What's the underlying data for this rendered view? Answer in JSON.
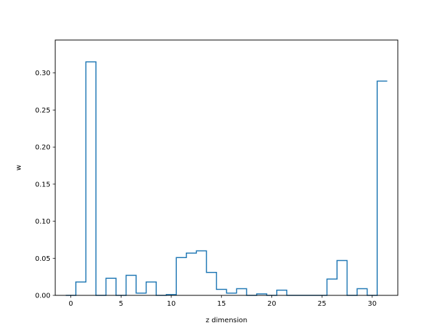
{
  "chart_data": {
    "type": "step",
    "title": "",
    "xlabel": "z dimension",
    "ylabel": "w",
    "xlim": [
      -1.55,
      32.55
    ],
    "ylim": [
      0,
      0.3444
    ],
    "xticks": [
      0,
      5,
      10,
      15,
      20,
      25,
      30
    ],
    "xtick_labels": [
      "0",
      "5",
      "10",
      "15",
      "20",
      "25",
      "30"
    ],
    "yticks": [
      0.0,
      0.05,
      0.1,
      0.15,
      0.2,
      0.25,
      0.3
    ],
    "ytick_labels": [
      "0.00",
      "0.05",
      "0.10",
      "0.15",
      "0.20",
      "0.25",
      "0.30"
    ],
    "grid": false,
    "color": "#1f77b4",
    "x": [
      0,
      1,
      2,
      3,
      4,
      5,
      6,
      7,
      8,
      9,
      10,
      11,
      12,
      13,
      14,
      15,
      16,
      17,
      18,
      19,
      20,
      21,
      22,
      23,
      24,
      25,
      26,
      27,
      28,
      29,
      30,
      31
    ],
    "values": [
      0.0,
      0.018,
      0.315,
      0.0,
      0.023,
      0.0,
      0.027,
      0.003,
      0.018,
      0.0,
      0.001,
      0.051,
      0.057,
      0.06,
      0.031,
      0.008,
      0.003,
      0.009,
      0.0,
      0.002,
      0.0,
      0.007,
      0.0,
      0.0,
      0.0,
      0.0,
      0.022,
      0.047,
      0.0,
      0.009,
      0.0,
      0.289
    ]
  }
}
